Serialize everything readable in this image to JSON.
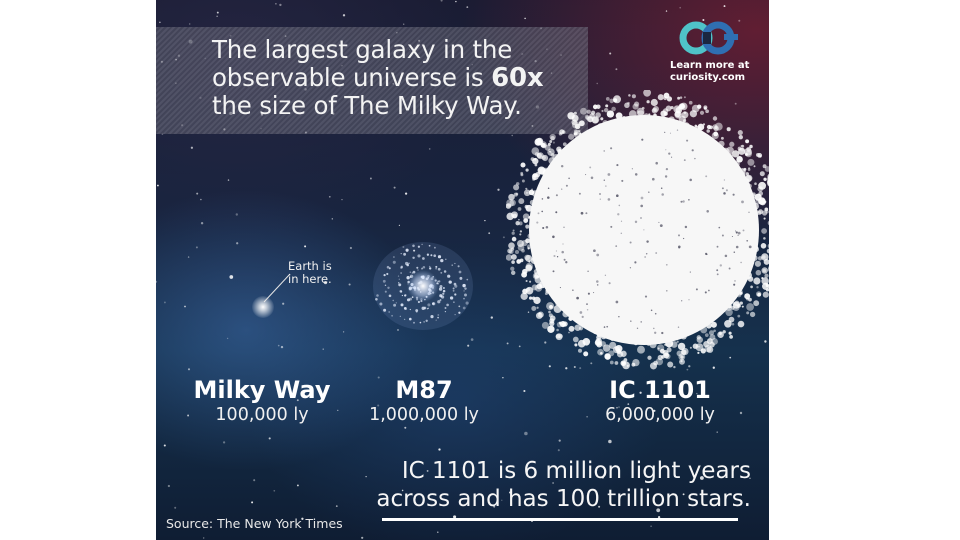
{
  "title": {
    "line1": "The largest galaxy in the",
    "line2_prefix": "observable universe is ",
    "line2_highlight": "60x",
    "line3": "the size of The Milky Way."
  },
  "logo": {
    "icon": "curiosity-logo-icon",
    "line1": "Learn more at",
    "line2": "curiosity.com"
  },
  "earth_note": {
    "line1": "Earth is",
    "line2": "in here."
  },
  "galaxies": [
    {
      "name": "Milky Way",
      "size": "100,000 ly"
    },
    {
      "name": "M87",
      "size": "1,000,000 ly"
    },
    {
      "name": "IC 1101",
      "size": "6,000,000 ly"
    }
  ],
  "fact": {
    "line1": "IC 1101 is 6 million light years",
    "line2": "across and has 100 trillion stars."
  },
  "source": "Source: The New York Times",
  "colors": {
    "logo_teal": "#4fc3c8",
    "logo_blue": "#2f6fb2",
    "text": "#ffffff"
  }
}
